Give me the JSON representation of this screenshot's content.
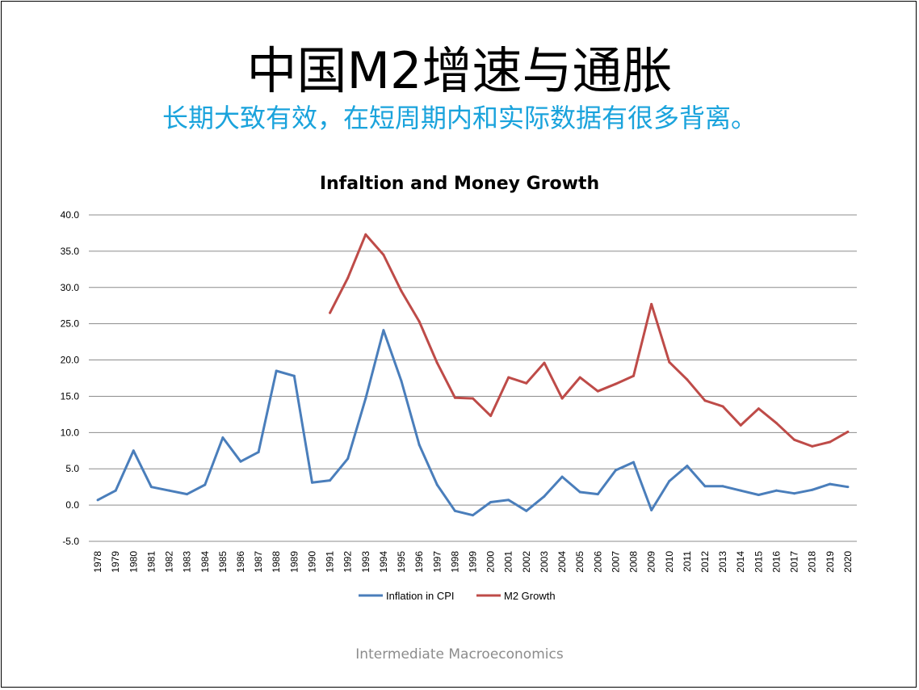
{
  "slide": {
    "title": "中国M2增速与通胀",
    "subtitle": "长期大致有效，在短周期内和实际数据有很多背离。",
    "footer": "Intermediate Macroeconomics"
  },
  "chart_data": {
    "type": "line",
    "title": "Infaltion and Money Growth",
    "xlabel": "",
    "ylabel": "",
    "ylim": [
      -5,
      40
    ],
    "yticks": [
      "40.0",
      "35.0",
      "30.0",
      "25.0",
      "20.0",
      "15.0",
      "10.0",
      "5.0",
      "0.0",
      "-5.0"
    ],
    "grid": true,
    "legend_position": "bottom",
    "categories": [
      "1978",
      "1979",
      "1980",
      "1981",
      "1982",
      "1983",
      "1984",
      "1985",
      "1986",
      "1987",
      "1988",
      "1989",
      "1990",
      "1991",
      "1992",
      "1993",
      "1994",
      "1995",
      "1996",
      "1997",
      "1998",
      "1999",
      "2000",
      "2001",
      "2002",
      "2003",
      "2004",
      "2005",
      "2006",
      "2007",
      "2008",
      "2009",
      "2010",
      "2011",
      "2012",
      "2013",
      "2014",
      "2015",
      "2016",
      "2017",
      "2018",
      "2019",
      "2020"
    ],
    "series": [
      {
        "name": "Inflation in CPI",
        "color": "#4a7ebb",
        "values": [
          0.7,
          2.0,
          7.5,
          2.5,
          2.0,
          1.5,
          2.8,
          9.3,
          6.0,
          7.3,
          18.5,
          17.8,
          3.1,
          3.4,
          6.4,
          14.7,
          24.1,
          17.1,
          8.3,
          2.8,
          -0.8,
          -1.4,
          0.4,
          0.7,
          -0.8,
          1.2,
          3.9,
          1.8,
          1.5,
          4.8,
          5.9,
          -0.7,
          3.3,
          5.4,
          2.6,
          2.6,
          2.0,
          1.4,
          2.0,
          1.6,
          2.1,
          2.9,
          2.5
        ]
      },
      {
        "name": "M2 Growth",
        "color": "#be4b48",
        "values": [
          null,
          null,
          null,
          null,
          null,
          null,
          null,
          null,
          null,
          null,
          null,
          null,
          null,
          26.5,
          31.3,
          37.3,
          34.5,
          29.5,
          25.3,
          19.6,
          14.8,
          14.7,
          12.3,
          17.6,
          16.8,
          19.6,
          14.7,
          17.6,
          15.7,
          16.7,
          17.8,
          27.7,
          19.7,
          17.3,
          14.4,
          13.6,
          11.0,
          13.3,
          11.3,
          9.0,
          8.1,
          8.7,
          10.1
        ]
      }
    ]
  }
}
